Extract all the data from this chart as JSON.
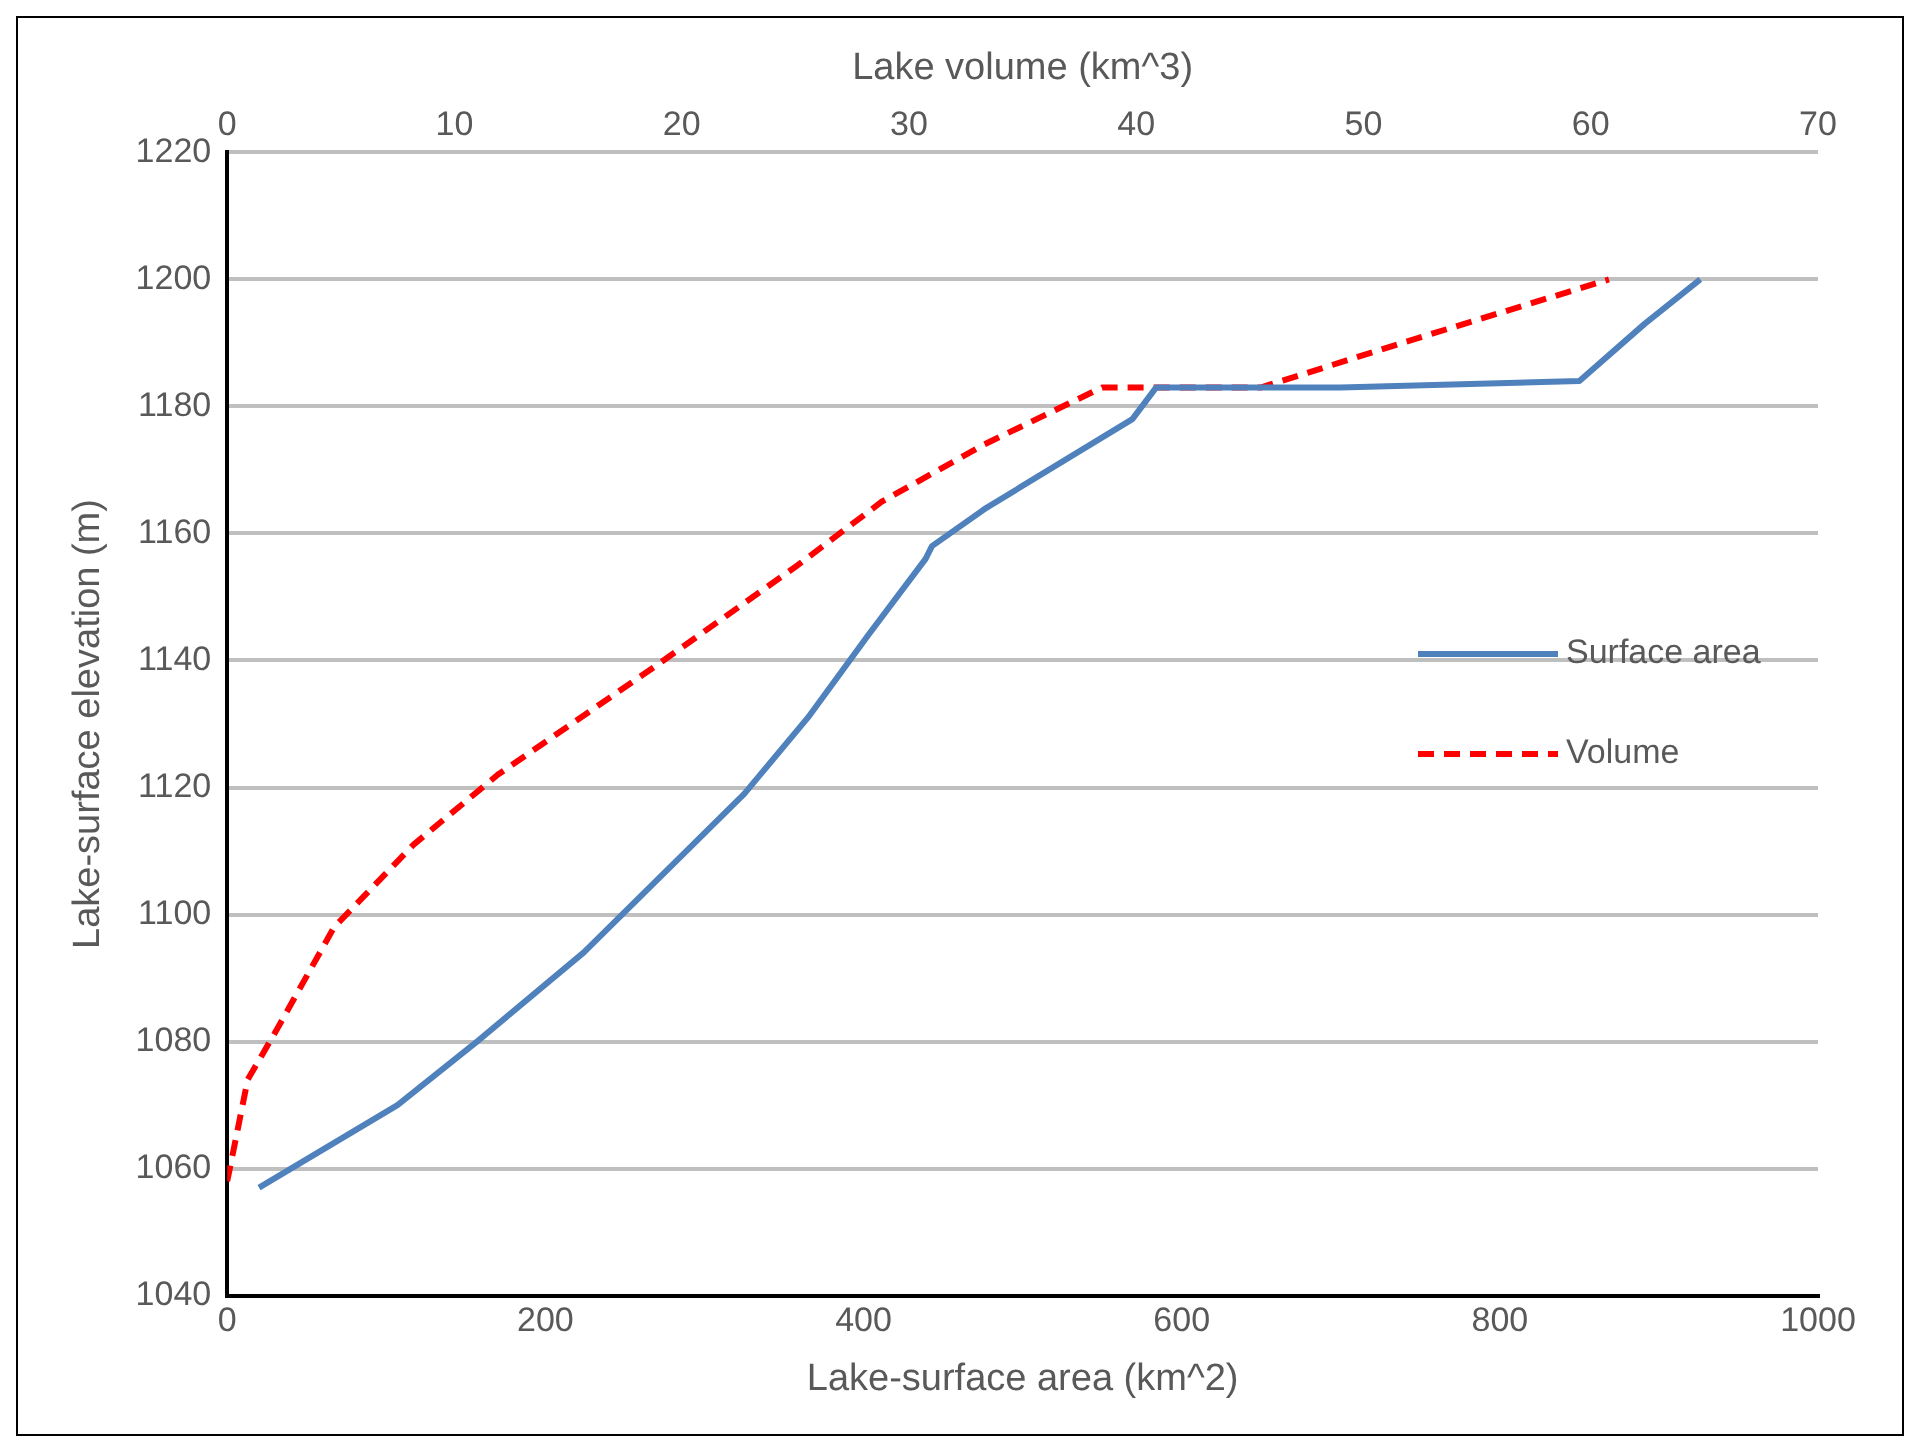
{
  "chart_data": {
    "type": "line",
    "xlabel": "Lake-surface area (km^2)",
    "x2label": "Lake volume (km^3)",
    "ylabel": "Lake-surface elevation (m)",
    "xlim": [
      0,
      1000
    ],
    "xticks": [
      0,
      200,
      400,
      600,
      800,
      1000
    ],
    "x2lim": [
      0,
      70
    ],
    "x2ticks": [
      0,
      10,
      20,
      30,
      40,
      50,
      60,
      70
    ],
    "ylim": [
      1040,
      1220
    ],
    "yticks": [
      1040,
      1060,
      1080,
      1100,
      1120,
      1140,
      1160,
      1180,
      1200,
      1220
    ],
    "grid": "y",
    "legend": "right",
    "marker": "none",
    "series": [
      {
        "name": "Surface area",
        "color": "#4f81bd",
        "line_style": "solid",
        "x": [
          20,
          107,
          157,
          224,
          325,
          365,
          403,
          439,
          443,
          477,
          569,
          584,
          700,
          850,
          891,
          926
        ],
        "values": [
          1057,
          1070,
          1080,
          1094,
          1119,
          1131,
          1144,
          1156,
          1158,
          1164,
          1178,
          1183,
          1183,
          1184,
          1193,
          1200
        ]
      },
      {
        "name": "Volume",
        "color": "#ff0000",
        "line_style": "dashed",
        "axis": "x2",
        "x": [
          0,
          0.9,
          2.2,
          4.7,
          8.2,
          11.9,
          18.8,
          25.1,
          28.8,
          33.3,
          38.5,
          45.5,
          51.7,
          60.8
        ],
        "values": [
          1058,
          1074,
          1082,
          1098,
          1111,
          1122,
          1139,
          1155,
          1165,
          1174,
          1183,
          1183,
          1190,
          1200
        ]
      }
    ]
  }
}
